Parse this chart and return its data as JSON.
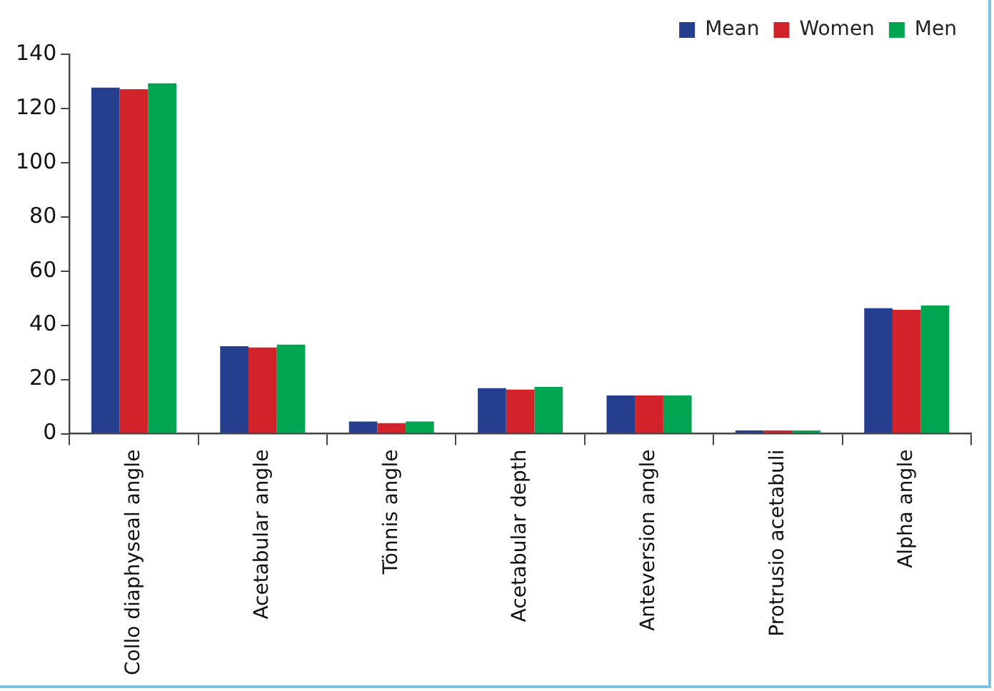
{
  "chart_data": {
    "type": "bar",
    "categories": [
      "Collo diaphyseal angle",
      "Acetabular angle",
      "Tönnis angle",
      "Acetabular depth",
      "Anteversion angle",
      "Protrusio acetabuli",
      "Alpha angle"
    ],
    "series": [
      {
        "name": "Mean",
        "color": "#253f8e",
        "values": [
          127.7,
          32.3,
          4.5,
          16.8,
          14.1,
          1.2,
          46.3
        ]
      },
      {
        "name": "Women",
        "color": "#d2232a",
        "values": [
          127.1,
          31.8,
          3.9,
          16.3,
          14.1,
          1.2,
          45.7
        ]
      },
      {
        "name": "Men",
        "color": "#00a551",
        "values": [
          129.3,
          32.9,
          4.5,
          17.3,
          14.1,
          1.2,
          47.3
        ]
      }
    ],
    "ylim": [
      0,
      140
    ],
    "yticks": [
      0,
      20,
      40,
      60,
      80,
      100,
      120,
      140
    ],
    "grid": false,
    "legend": "top right"
  }
}
